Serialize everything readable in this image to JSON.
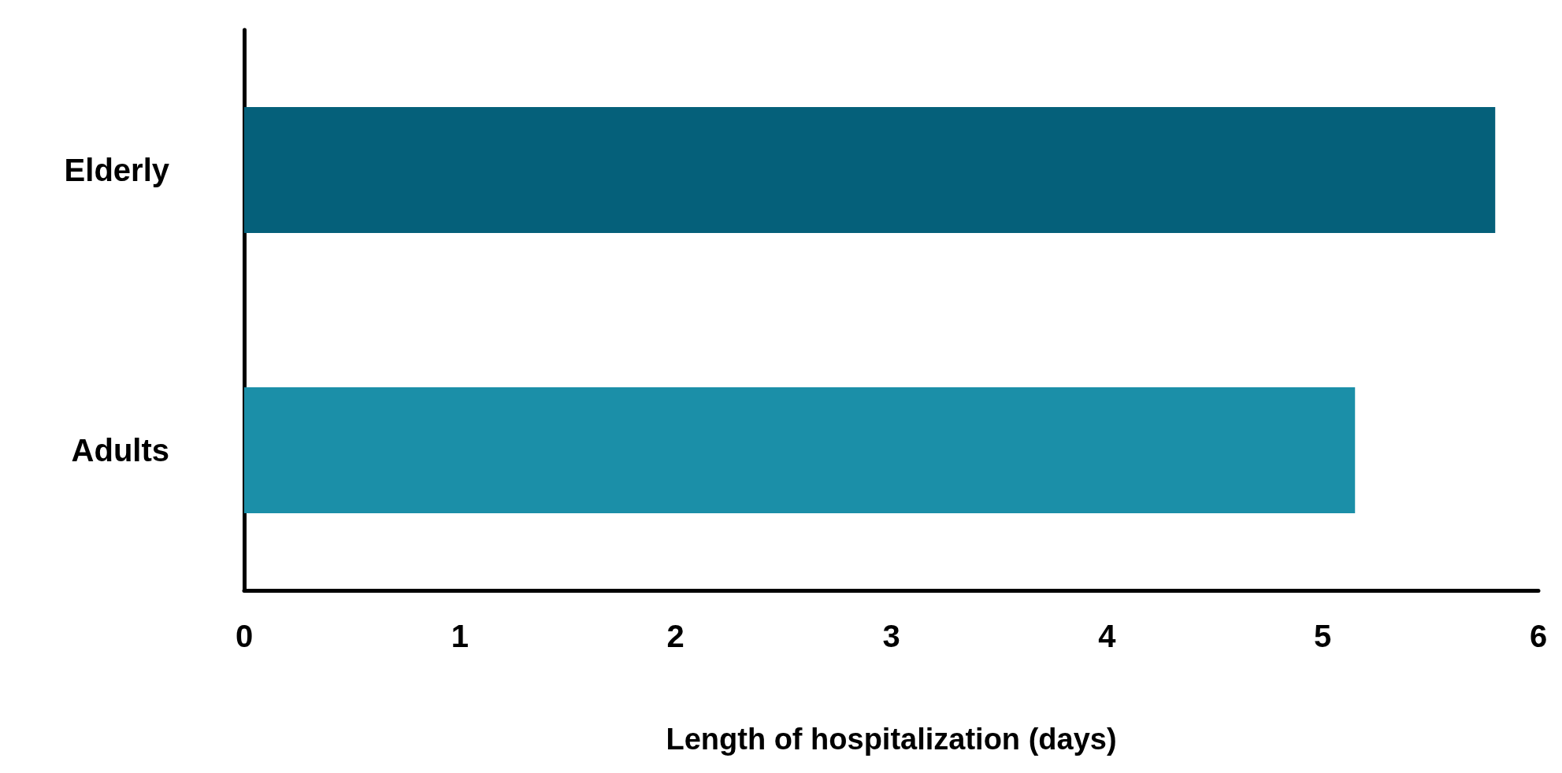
{
  "chart_data": {
    "type": "bar",
    "orientation": "horizontal",
    "xlabel": "Length of hospitalization (days)",
    "categories": [
      "Elderly",
      "Adults"
    ],
    "values": [
      5.8,
      5.15
    ],
    "colors": [
      "#05607a",
      "#1b8fa8"
    ],
    "xlim": [
      0,
      6
    ],
    "xticks": [
      0,
      1,
      2,
      3,
      4,
      5,
      6
    ]
  }
}
